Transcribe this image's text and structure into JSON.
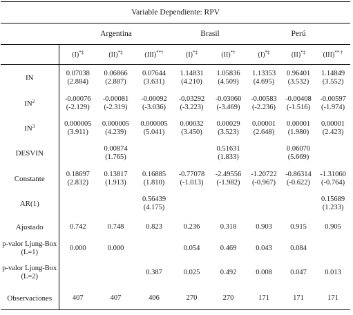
{
  "title": "Variable Dependiente: RPV",
  "countries": [
    "Argentina",
    "Brasil",
    "Perú"
  ],
  "models": [
    {
      "label": "(I)",
      "sup": "*‡"
    },
    {
      "label": "(II)",
      "sup": "*‡"
    },
    {
      "label": "(III)",
      "sup": "**†"
    },
    {
      "label": "(I)",
      "sup": "*‡"
    },
    {
      "label": "(II)",
      "sup": "*†"
    },
    {
      "label": "(I)",
      "sup": "*‡"
    },
    {
      "label": "(II)",
      "sup": "*‡"
    },
    {
      "label": "(III)",
      "sup": "** †"
    }
  ],
  "rows": [
    {
      "label": "IN",
      "sup": "",
      "cells": [
        {
          "c": "0.07038",
          "t": "(2.884)"
        },
        {
          "c": "0.06866",
          "t": "(2.887)"
        },
        {
          "c": "0.07644",
          "t": "(3.631)"
        },
        {
          "c": "1.14831",
          "t": "(4.210)"
        },
        {
          "c": "1.05836",
          "t": "(4.509)"
        },
        {
          "c": "1.13353",
          "t": "(4.695)"
        },
        {
          "c": "0.96401",
          "t": "(3.532)"
        },
        {
          "c": "1.14849",
          "t": "(3.552)"
        }
      ]
    },
    {
      "label": "IN",
      "sup": "2",
      "cells": [
        {
          "c": "-0.00076",
          "t": "(-2.129)"
        },
        {
          "c": "-0.00081",
          "t": "(-2.319)"
        },
        {
          "c": "-0.00092",
          "t": "(-3.036)"
        },
        {
          "c": "-0.03292",
          "t": "(-3.223)"
        },
        {
          "c": "-0.03060",
          "t": "(-3.469)"
        },
        {
          "c": "-0.00583",
          "t": "(-2.236)"
        },
        {
          "c": "-0.00408",
          "t": "(-1.516)"
        },
        {
          "c": "-0.00597",
          "t": "(-1.974)"
        }
      ]
    },
    {
      "label": "IN",
      "sup": "3",
      "cells": [
        {
          "c": "0.000005",
          "t": "(3.911)"
        },
        {
          "c": "0.000005",
          "t": "(4.239)"
        },
        {
          "c": "0.000005",
          "t": "(5.041)"
        },
        {
          "c": "0.00032",
          "t": "(3.450)"
        },
        {
          "c": "0.00029",
          "t": "(3.523)"
        },
        {
          "c": "0.00001",
          "t": "(2.648)"
        },
        {
          "c": "0.00001",
          "t": "(1.980)"
        },
        {
          "c": "0.00001",
          "t": "(2.423)"
        }
      ]
    },
    {
      "label": "DESVIN",
      "sup": "",
      "cells": [
        {
          "c": "",
          "t": ""
        },
        {
          "c": "0.00874",
          "t": "(1.765)"
        },
        {
          "c": "",
          "t": ""
        },
        {
          "c": "",
          "t": ""
        },
        {
          "c": "0.51631",
          "t": "(1.833)"
        },
        {
          "c": "",
          "t": ""
        },
        {
          "c": "0.06070",
          "t": "(5.669)"
        },
        {
          "c": "",
          "t": ""
        }
      ]
    },
    {
      "label": "Constante",
      "sup": "",
      "cells": [
        {
          "c": "0.18697",
          "t": "(2.832)"
        },
        {
          "c": "0.13817",
          "t": "(1.913)"
        },
        {
          "c": "0.16885",
          "t": "(1.810)"
        },
        {
          "c": "-0.77078",
          "t": "(-1.013)"
        },
        {
          "c": "-2.49556",
          "t": "(-1.982)"
        },
        {
          "c": "-1.20722",
          "t": "(-0.967)"
        },
        {
          "c": "-0.86314",
          "t": "(-0.622)"
        },
        {
          "c": "-1.31060",
          "t": "(-0.764)"
        }
      ]
    },
    {
      "label": "AR(1)",
      "sup": "",
      "cells": [
        {
          "c": "",
          "t": ""
        },
        {
          "c": "",
          "t": ""
        },
        {
          "c": "0.56439",
          "t": "(4.175)"
        },
        {
          "c": "",
          "t": ""
        },
        {
          "c": "",
          "t": ""
        },
        {
          "c": "",
          "t": ""
        },
        {
          "c": "",
          "t": ""
        },
        {
          "c": "0.15689",
          "t": "(1.233)"
        }
      ]
    },
    {
      "label": "Ajustado",
      "sup": "",
      "cells": [
        {
          "c": "0.742",
          "t": ""
        },
        {
          "c": "0.748",
          "t": ""
        },
        {
          "c": "0.823",
          "t": ""
        },
        {
          "c": "0.236",
          "t": ""
        },
        {
          "c": "0.318",
          "t": ""
        },
        {
          "c": "0.903",
          "t": ""
        },
        {
          "c": "0.915",
          "t": ""
        },
        {
          "c": "0.905",
          "t": ""
        }
      ]
    },
    {
      "label": "p-valor Ljung-Box (L=1)",
      "sup": "",
      "cells": [
        {
          "c": "0.000",
          "t": ""
        },
        {
          "c": "0.000",
          "t": ""
        },
        {
          "c": "",
          "t": ""
        },
        {
          "c": "0.054",
          "t": ""
        },
        {
          "c": "0.469",
          "t": ""
        },
        {
          "c": "0.043",
          "t": ""
        },
        {
          "c": "0.084",
          "t": ""
        },
        {
          "c": "",
          "t": ""
        }
      ]
    },
    {
      "label": "p-valor Ljung-Box (L=2)",
      "sup": "",
      "cells": [
        {
          "c": "",
          "t": ""
        },
        {
          "c": "",
          "t": ""
        },
        {
          "c": "0.387",
          "t": ""
        },
        {
          "c": "0.025",
          "t": ""
        },
        {
          "c": "0.492",
          "t": ""
        },
        {
          "c": "0.008",
          "t": ""
        },
        {
          "c": "0.047",
          "t": ""
        },
        {
          "c": "0.013",
          "t": ""
        }
      ]
    },
    {
      "label": "Observaciones",
      "sup": "",
      "cells": [
        {
          "c": "407",
          "t": ""
        },
        {
          "c": "407",
          "t": ""
        },
        {
          "c": "406",
          "t": ""
        },
        {
          "c": "270",
          "t": ""
        },
        {
          "c": "270",
          "t": ""
        },
        {
          "c": "171",
          "t": ""
        },
        {
          "c": "171",
          "t": ""
        },
        {
          "c": "171",
          "t": ""
        }
      ]
    }
  ]
}
